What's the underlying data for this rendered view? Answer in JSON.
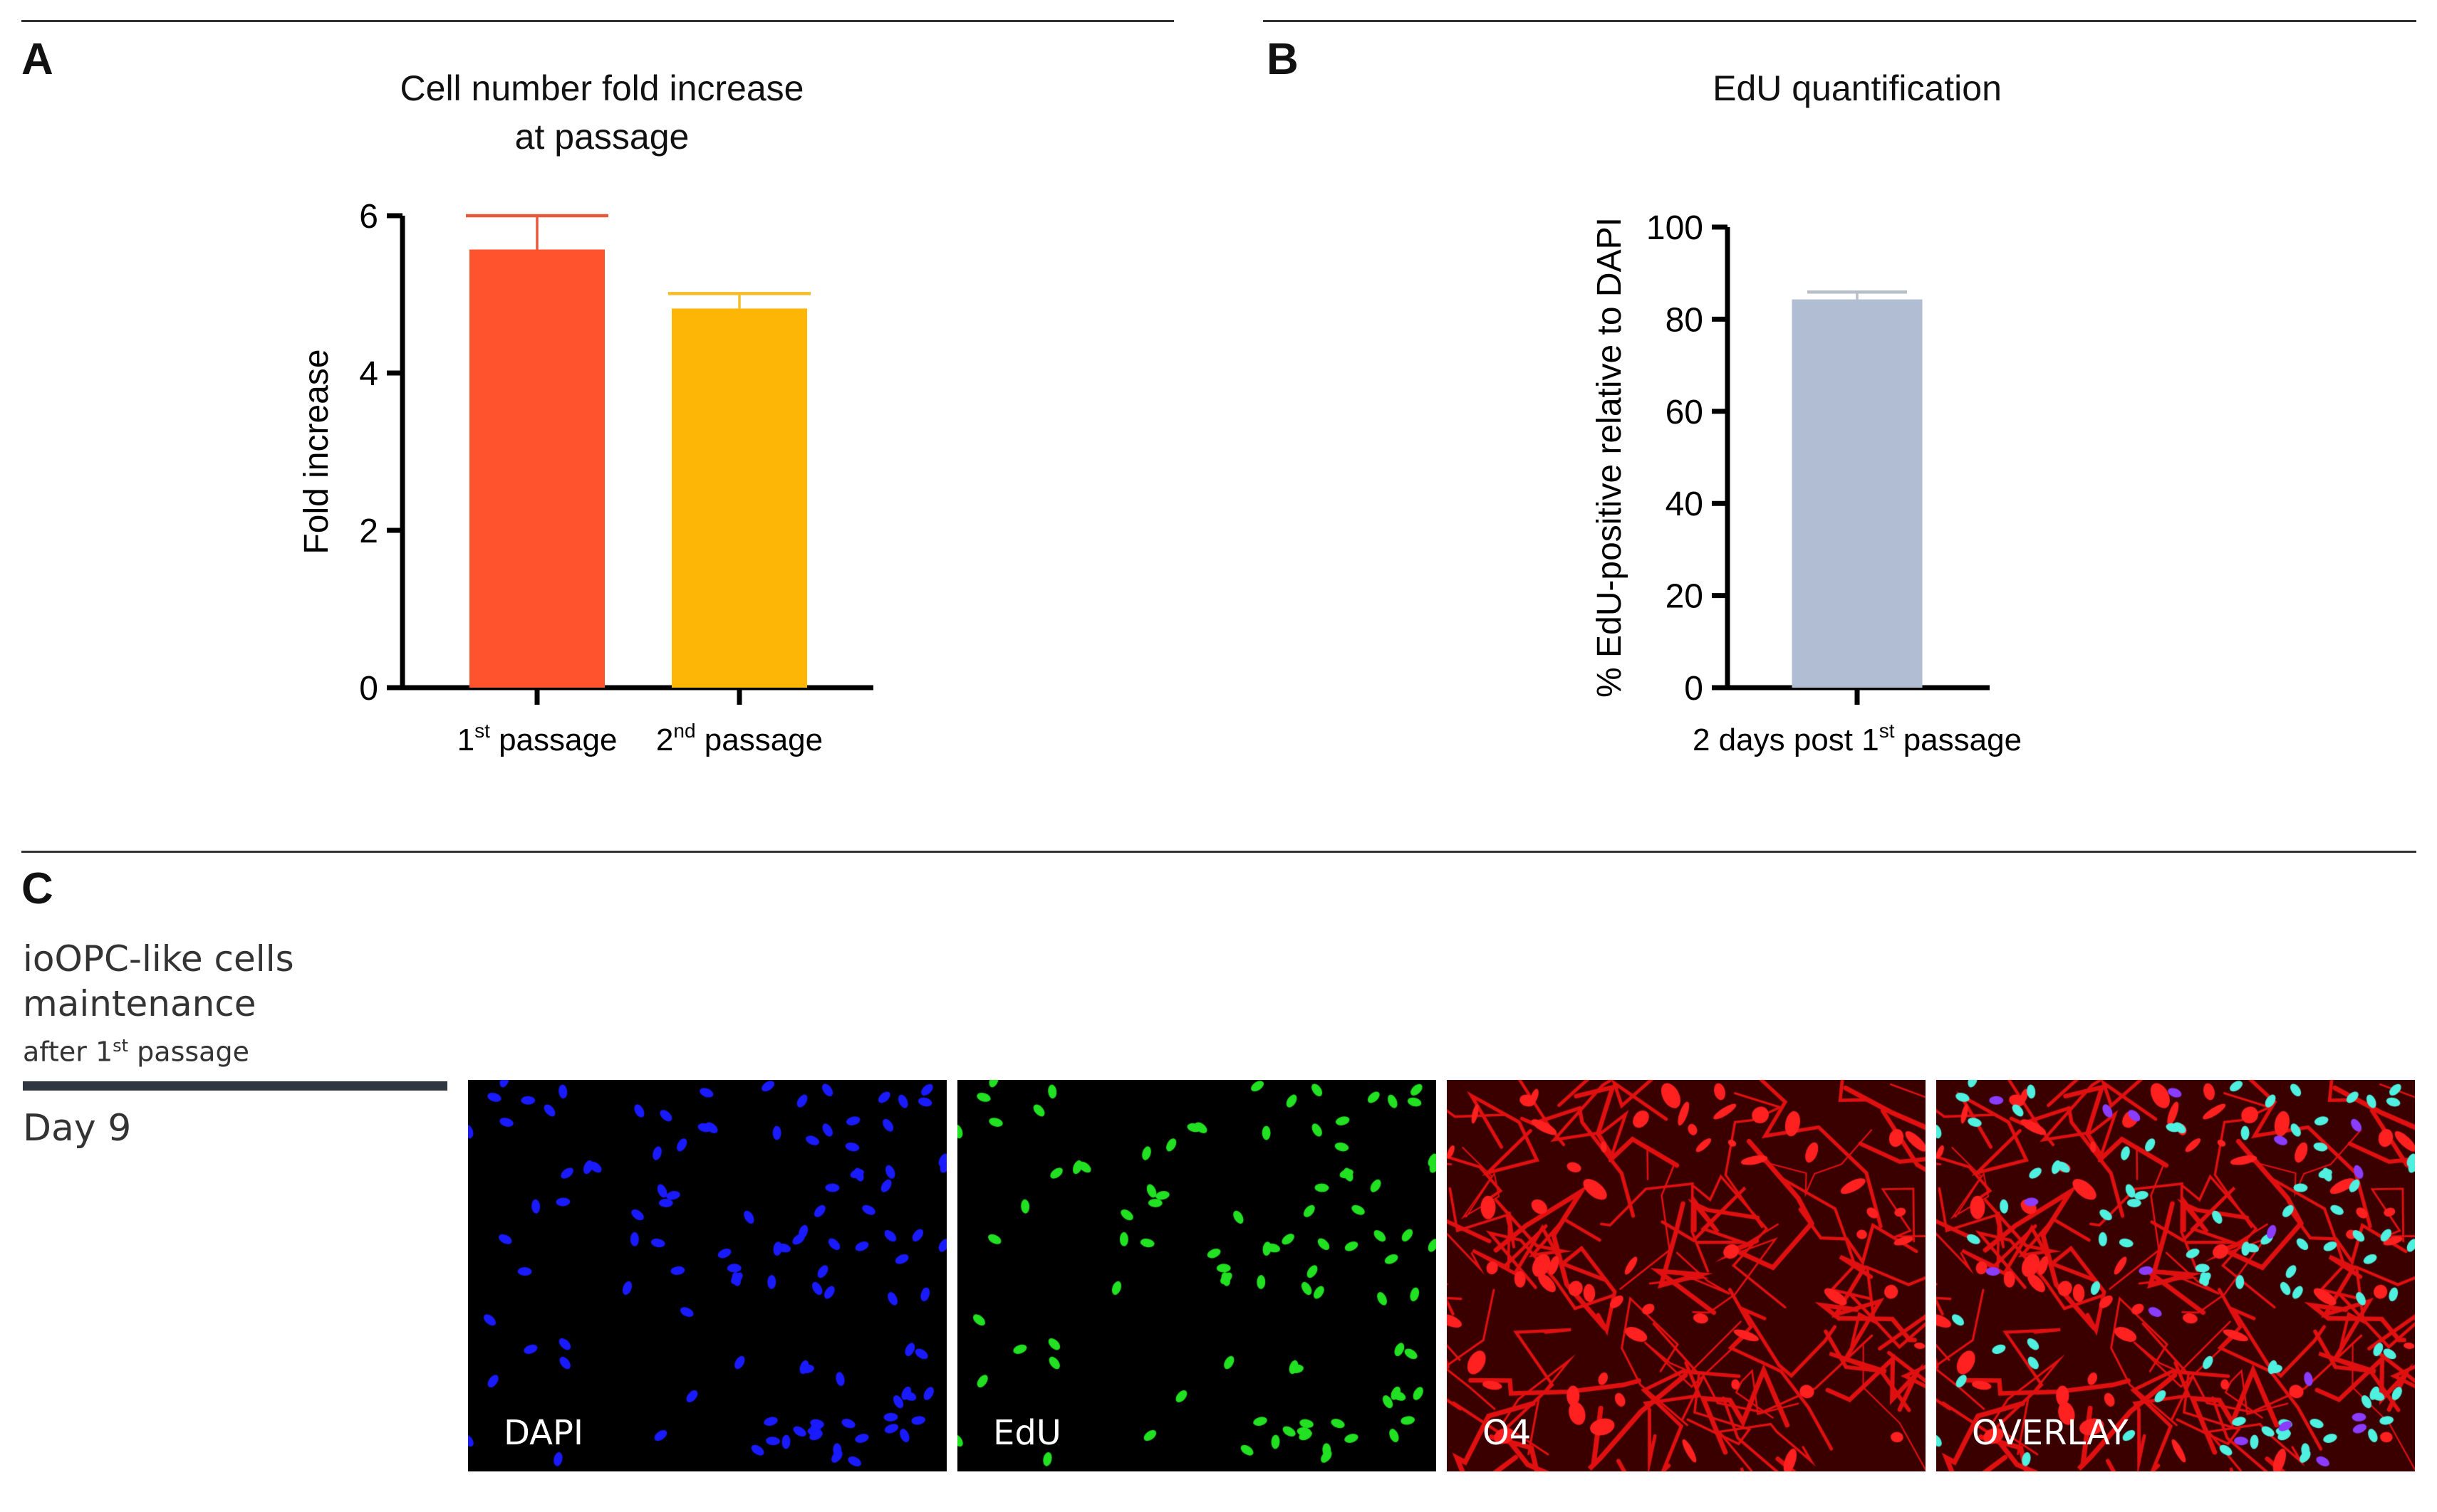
{
  "panels": {
    "a": "A",
    "b": "B",
    "c": "C"
  },
  "chart_data": [
    {
      "type": "bar",
      "title": [
        "Cell number fold increase",
        "at passage"
      ],
      "ylabel": "Fold increase",
      "categories": [
        {
          "base": "1",
          "sup": "st",
          "rest": " passage"
        },
        {
          "base": "2",
          "sup": "nd",
          "rest": " passage"
        }
      ],
      "values": [
        5.57,
        4.82
      ],
      "error_upper": [
        6.0,
        5.01
      ],
      "colors": [
        "#ff532d",
        "#fdb606"
      ],
      "error_colors": [
        "#e8583a",
        "#f5bd2a"
      ],
      "ylim": [
        0,
        6
      ],
      "yticks": [
        0,
        2,
        4,
        6
      ]
    },
    {
      "type": "bar",
      "title": [
        "EdU quantification"
      ],
      "ylabel": "% EdU-positive relative to DAPI",
      "categories": [
        {
          "base": "2 days post 1",
          "sup": "st",
          "rest": " passage"
        }
      ],
      "values": [
        84.3
      ],
      "error_upper": [
        85.9
      ],
      "colors": [
        "#b1bdd2"
      ],
      "error_colors": [
        "#b8bec8"
      ],
      "ylim": [
        0,
        100
      ],
      "yticks": [
        0,
        20,
        40,
        60,
        80,
        100
      ]
    }
  ],
  "section_c": {
    "line1": "ioOPC-like cells",
    "line2": "maintenance",
    "line3_base": "after 1",
    "line3_sup": "st",
    "line3_rest": " passage",
    "day": "Day 9",
    "images": [
      {
        "label": "DAPI",
        "stain": "blue"
      },
      {
        "label": "EdU",
        "stain": "green"
      },
      {
        "label": "O4",
        "stain": "red"
      },
      {
        "label": "OVERLAY",
        "stain": "overlay"
      }
    ]
  }
}
